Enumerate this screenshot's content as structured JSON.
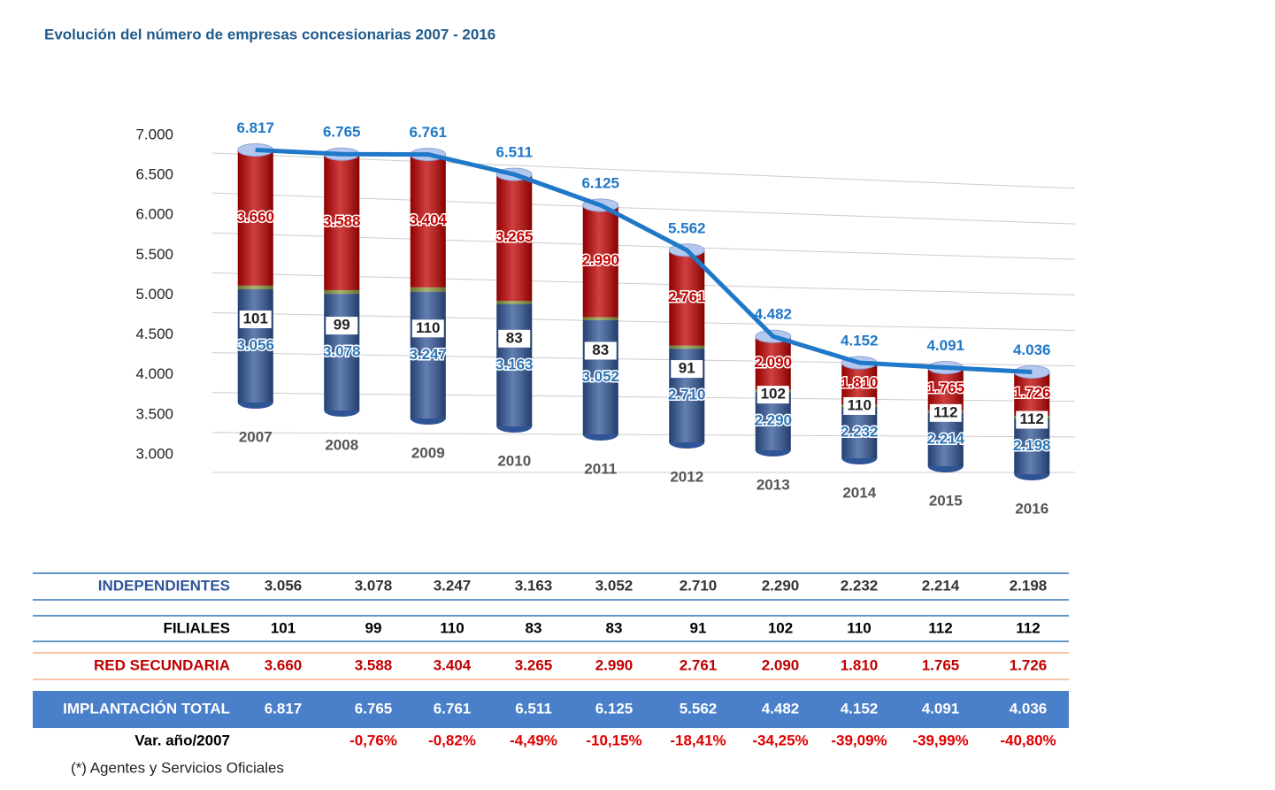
{
  "chart_data": {
    "type": "bar",
    "title": "Evolución del número de empresas concesionarias 2007 - 2016",
    "categories": [
      "2007",
      "2008",
      "2009",
      "2010",
      "2011",
      "2012",
      "2013",
      "2014",
      "2015",
      "2016"
    ],
    "ylim": [
      3000,
      7000
    ],
    "yticks": [
      {
        "value": 3000,
        "label": "3.000"
      },
      {
        "value": 3500,
        "label": "3.500"
      },
      {
        "value": 4000,
        "label": "4.000"
      },
      {
        "value": 4500,
        "label": "4.500"
      },
      {
        "value": 5000,
        "label": "5.000"
      },
      {
        "value": 5500,
        "label": "5.500"
      },
      {
        "value": 6000,
        "label": "6.000"
      },
      {
        "value": 6500,
        "label": "6.500"
      },
      {
        "value": 7000,
        "label": "7.000"
      }
    ],
    "grid": true,
    "series": [
      {
        "name": "INDEPENDIENTES",
        "color": "#2f5597",
        "values": [
          3056,
          3078,
          3247,
          3163,
          3052,
          2710,
          2290,
          2232,
          2214,
          2198
        ],
        "value_labels": [
          "3.056",
          "3.078",
          "3.247",
          "3.163",
          "3.052",
          "2.710",
          "2.290",
          "2.232",
          "2.214",
          "2.198"
        ]
      },
      {
        "name": "FILIALES",
        "color": "#8a9a3a",
        "values": [
          101,
          99,
          110,
          83,
          83,
          91,
          102,
          110,
          112,
          112
        ]
      },
      {
        "name": "RED SECUNDARIA",
        "color": "#c00000",
        "values": [
          3660,
          3588,
          3404,
          3265,
          2990,
          2761,
          2090,
          1810,
          1765,
          1726
        ],
        "value_labels": [
          "3.660",
          "3.588",
          "3.404",
          "3.265",
          "2.990",
          "2.761",
          "2.090",
          "1.810",
          "1.765",
          "1.726"
        ]
      },
      {
        "name": "IMPLANTACIÓN TOTAL",
        "color": "#1f78c8",
        "axis": "y",
        "values": [
          6817,
          6765,
          6761,
          6511,
          6125,
          5562,
          4482,
          4152,
          4091,
          4036
        ],
        "value_labels": [
          "6.817",
          "6.765",
          "6.761",
          "6.511",
          "6.125",
          "5.562",
          "4.482",
          "4.152",
          "4.091",
          "4.036"
        ]
      }
    ],
    "variation": {
      "name": "Var. año/2007",
      "values": [
        null,
        -0.76,
        -0.82,
        -4.49,
        -10.15,
        -18.41,
        -34.25,
        -39.09,
        -39.99,
        -40.8
      ],
      "value_labels": [
        null,
        "-0,76%",
        "-0,82%",
        "-4,49%",
        "-10,15%",
        "-18,41%",
        "-34,25%",
        "-39,09%",
        "-39,99%",
        "-40,80%"
      ]
    },
    "footnote": "(*) Agentes y Servicios Oficiales"
  }
}
